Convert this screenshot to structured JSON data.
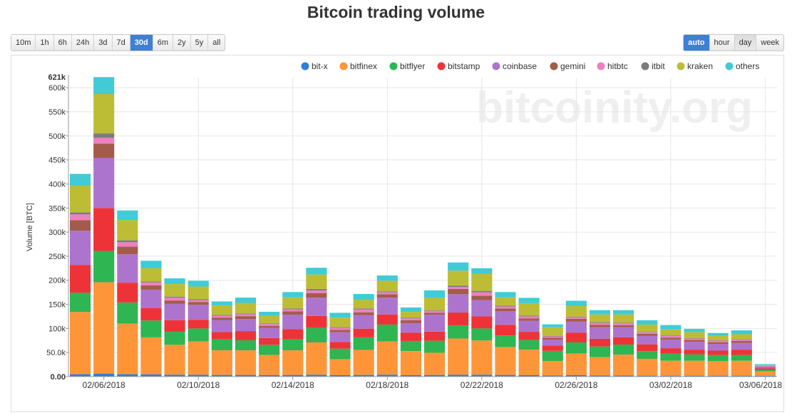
{
  "page": {
    "title": "Bitcoin trading volume"
  },
  "range_buttons": [
    {
      "label": "10m"
    },
    {
      "label": "1h"
    },
    {
      "label": "6h"
    },
    {
      "label": "24h"
    },
    {
      "label": "3d"
    },
    {
      "label": "7d"
    },
    {
      "label": "30d",
      "active": true
    },
    {
      "label": "6m"
    },
    {
      "label": "2y"
    },
    {
      "label": "5y"
    },
    {
      "label": "all"
    }
  ],
  "resolution_buttons": [
    {
      "label": "auto",
      "active": true
    },
    {
      "label": "hour"
    },
    {
      "label": "day",
      "pressed": true
    },
    {
      "label": "week"
    }
  ],
  "watermark": "bitcoinity.org",
  "chart_data": {
    "type": "bar",
    "stacked": true,
    "title": "Bitcoin trading volume",
    "ylabel": "Volume [BTC]",
    "xlabel": "",
    "ylim": [
      0,
      621000
    ],
    "y_top_label": "621k",
    "y_ticks": [
      {
        "value": 0,
        "label": "0.00"
      },
      {
        "value": 50000,
        "label": "50.0k"
      },
      {
        "value": 100000,
        "label": "100k"
      },
      {
        "value": 150000,
        "label": "150k"
      },
      {
        "value": 200000,
        "label": "200k"
      },
      {
        "value": 250000,
        "label": "250k"
      },
      {
        "value": 300000,
        "label": "300k"
      },
      {
        "value": 350000,
        "label": "350k"
      },
      {
        "value": 400000,
        "label": "400k"
      },
      {
        "value": 450000,
        "label": "450k"
      },
      {
        "value": 500000,
        "label": "500k"
      },
      {
        "value": 550000,
        "label": "550k"
      },
      {
        "value": 600000,
        "label": "600k"
      }
    ],
    "categories": [
      "02/05/2018",
      "02/06/2018",
      "02/07/2018",
      "02/08/2018",
      "02/09/2018",
      "02/10/2018",
      "02/11/2018",
      "02/12/2018",
      "02/13/2018",
      "02/14/2018",
      "02/15/2018",
      "02/16/2018",
      "02/17/2018",
      "02/18/2018",
      "02/19/2018",
      "02/20/2018",
      "02/21/2018",
      "02/22/2018",
      "02/23/2018",
      "02/24/2018",
      "02/25/2018",
      "02/26/2018",
      "02/27/2018",
      "02/28/2018",
      "03/01/2018",
      "03/02/2018",
      "03/03/2018",
      "03/04/2018",
      "03/05/2018",
      "03/06/2018"
    ],
    "x_tick_labels": [
      {
        "index": 1,
        "label": "02/06/2018"
      },
      {
        "index": 5,
        "label": "02/10/2018"
      },
      {
        "index": 9,
        "label": "02/14/2018"
      },
      {
        "index": 13,
        "label": "02/18/2018"
      },
      {
        "index": 17,
        "label": "02/22/2018"
      },
      {
        "index": 21,
        "label": "02/26/2018"
      },
      {
        "index": 25,
        "label": "03/02/2018"
      },
      {
        "index": 29,
        "label": "03/06/2018"
      }
    ],
    "legend_position": "top-right",
    "grid": true,
    "series": [
      {
        "name": "bit-x",
        "color": "#2f7ed8",
        "values": [
          5000,
          6000,
          5000,
          4500,
          4000,
          4000,
          3500,
          3500,
          3000,
          3500,
          4000,
          3000,
          3500,
          4000,
          3000,
          3500,
          4000,
          4000,
          3500,
          3000,
          2500,
          3000,
          2500,
          2500,
          2000,
          2000,
          2000,
          2000,
          2000,
          1500
        ]
      },
      {
        "name": "bitfinex",
        "color": "#ff9539",
        "values": [
          129000,
          190000,
          105000,
          77000,
          62000,
          69000,
          51000,
          51000,
          42000,
          51000,
          67000,
          33000,
          52000,
          69000,
          50000,
          46000,
          75000,
          71000,
          58000,
          53000,
          30000,
          45000,
          38000,
          43000,
          35000,
          31000,
          31000,
          30000,
          31000,
          9500
        ]
      },
      {
        "name": "bitflyer",
        "color": "#2fb552",
        "values": [
          40000,
          65000,
          44000,
          35000,
          27000,
          27000,
          23000,
          21000,
          21000,
          23000,
          30000,
          22000,
          26000,
          35000,
          21000,
          25000,
          27000,
          25000,
          24000,
          20000,
          21000,
          23000,
          22000,
          21000,
          16000,
          15000,
          13000,
          13000,
          12000,
          3000
        ]
      },
      {
        "name": "bitstamp",
        "color": "#ee3338",
        "values": [
          58000,
          89000,
          41000,
          26000,
          24000,
          18000,
          15000,
          19000,
          14000,
          21000,
          25000,
          14000,
          18000,
          21000,
          17000,
          19000,
          27000,
          25000,
          22000,
          17000,
          11000,
          20000,
          16000,
          15000,
          14000,
          11000,
          10000,
          9000,
          11000,
          3000
        ]
      },
      {
        "name": "coinbase",
        "color": "#ad74cd",
        "values": [
          71000,
          104000,
          59000,
          38000,
          34000,
          31000,
          25000,
          25000,
          21000,
          30000,
          38000,
          20000,
          28000,
          35000,
          20000,
          35000,
          38000,
          34000,
          28000,
          23000,
          12000,
          23000,
          24000,
          21000,
          18000,
          18000,
          16000,
          14000,
          14000,
          3000
        ]
      },
      {
        "name": "gemini",
        "color": "#a35c4b",
        "values": [
          22000,
          30000,
          16000,
          9000,
          7000,
          6000,
          5000,
          6000,
          4000,
          7000,
          9000,
          5000,
          6000,
          7000,
          6000,
          4000,
          11000,
          9000,
          6000,
          5000,
          4000,
          6000,
          5000,
          4000,
          4000,
          4000,
          4000,
          3500,
          4000,
          1000
        ]
      },
      {
        "name": "hitbtc",
        "color": "#ef7fc1",
        "values": [
          12000,
          12000,
          9000,
          6000,
          6000,
          4000,
          4000,
          4000,
          4000,
          4000,
          6000,
          4000,
          6000,
          4000,
          4000,
          4000,
          4000,
          7000,
          4000,
          4000,
          3000,
          3000,
          4000,
          4000,
          3000,
          3000,
          3000,
          3000,
          3000,
          1000
        ]
      },
      {
        "name": "itbit",
        "color": "#7c7c7c",
        "values": [
          4000,
          9000,
          4000,
          2000,
          2000,
          2000,
          1500,
          1500,
          1500,
          2000,
          3000,
          1500,
          2000,
          2000,
          1500,
          1500,
          3000,
          3000,
          2000,
          1500,
          1000,
          1500,
          1500,
          1500,
          1000,
          1000,
          1000,
          1000,
          1000,
          500
        ]
      },
      {
        "name": "kraken",
        "color": "#bdbd35",
        "values": [
          56000,
          82000,
          42000,
          28000,
          26000,
          26000,
          20000,
          22000,
          16000,
          23000,
          30000,
          20000,
          18000,
          22000,
          12000,
          26000,
          31000,
          35000,
          17000,
          26000,
          18000,
          22000,
          16000,
          17000,
          15000,
          13000,
          12000,
          9000,
          10000,
          1500
        ]
      },
      {
        "name": "others",
        "color": "#40cbd7",
        "values": [
          24000,
          35000,
          20000,
          15000,
          12000,
          12000,
          8000,
          11000,
          8000,
          11000,
          14000,
          10000,
          12000,
          11000,
          9000,
          15000,
          17000,
          12000,
          11000,
          11000,
          6000,
          11000,
          9000,
          9000,
          9000,
          9000,
          7000,
          6000,
          8000,
          2000
        ]
      }
    ]
  }
}
